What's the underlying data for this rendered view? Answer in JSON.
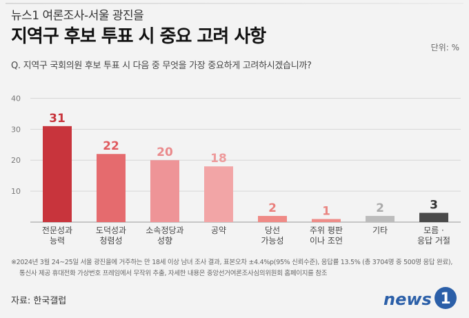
{
  "header": {
    "kicker": "뉴스1 여론조사-서울 광진을",
    "title": "지역구 후보 투표 시 중요 고려 사항",
    "unit": "단위: %",
    "question": "Q. 지역구 국회의원 후보 투표 시 다음 중 무엇을 가장 중요하게 고려하시겠습니까?"
  },
  "chart_data": {
    "type": "bar",
    "categories": [
      [
        "전문성과",
        "능력"
      ],
      [
        "도덕성과",
        "청렴성"
      ],
      [
        "소속정당과",
        "성향"
      ],
      [
        "공약"
      ],
      [
        "당선",
        "가능성"
      ],
      [
        "주위 평판",
        "이나 조언"
      ],
      [
        "기타"
      ],
      [
        "모름 ·",
        "응답 거절"
      ]
    ],
    "values": [
      31,
      22,
      20,
      18,
      2,
      1,
      2,
      3
    ],
    "value_labels": [
      "31",
      "22",
      "20",
      "18",
      "2",
      "1",
      "2",
      "3"
    ],
    "colors": [
      "#c8343c",
      "#e56b6e",
      "#ee9497",
      "#f2a5a6",
      "#ef8a86",
      "#ee8c88",
      "#bcbcbc",
      "#4a4a4a"
    ],
    "label_colors": [
      "#c8343c",
      "#e05a5e",
      "#ea8a8c",
      "#ee9a9b",
      "#ea7e7b",
      "#e98581",
      "#aaaaaa",
      "#333333"
    ],
    "yticks": [
      10,
      20,
      30,
      40
    ],
    "ylim": [
      0,
      45
    ],
    "grid": true,
    "xlabel": "",
    "ylabel": ""
  },
  "footer": {
    "note_line1": "※2024년 3월 24~25일 서울 광진을에 거주하는 만 18세 이상 남녀 조사 결과, 표본오차 ±4.4%p(95% 신뢰수준), 응답률 13.5% (총 3704명 중 500명 응답 완료),",
    "note_line2": "통신사 제공 휴대전화 가상번호 프레임에서 무작위 추출, 자세한 내용은 중앙선거여론조사심의위원회 홈페이지를 참조",
    "source": "자료: 한국갤럽",
    "logo_text": "news",
    "logo_mark": "1",
    "brand_color": "#2b5fa8"
  }
}
